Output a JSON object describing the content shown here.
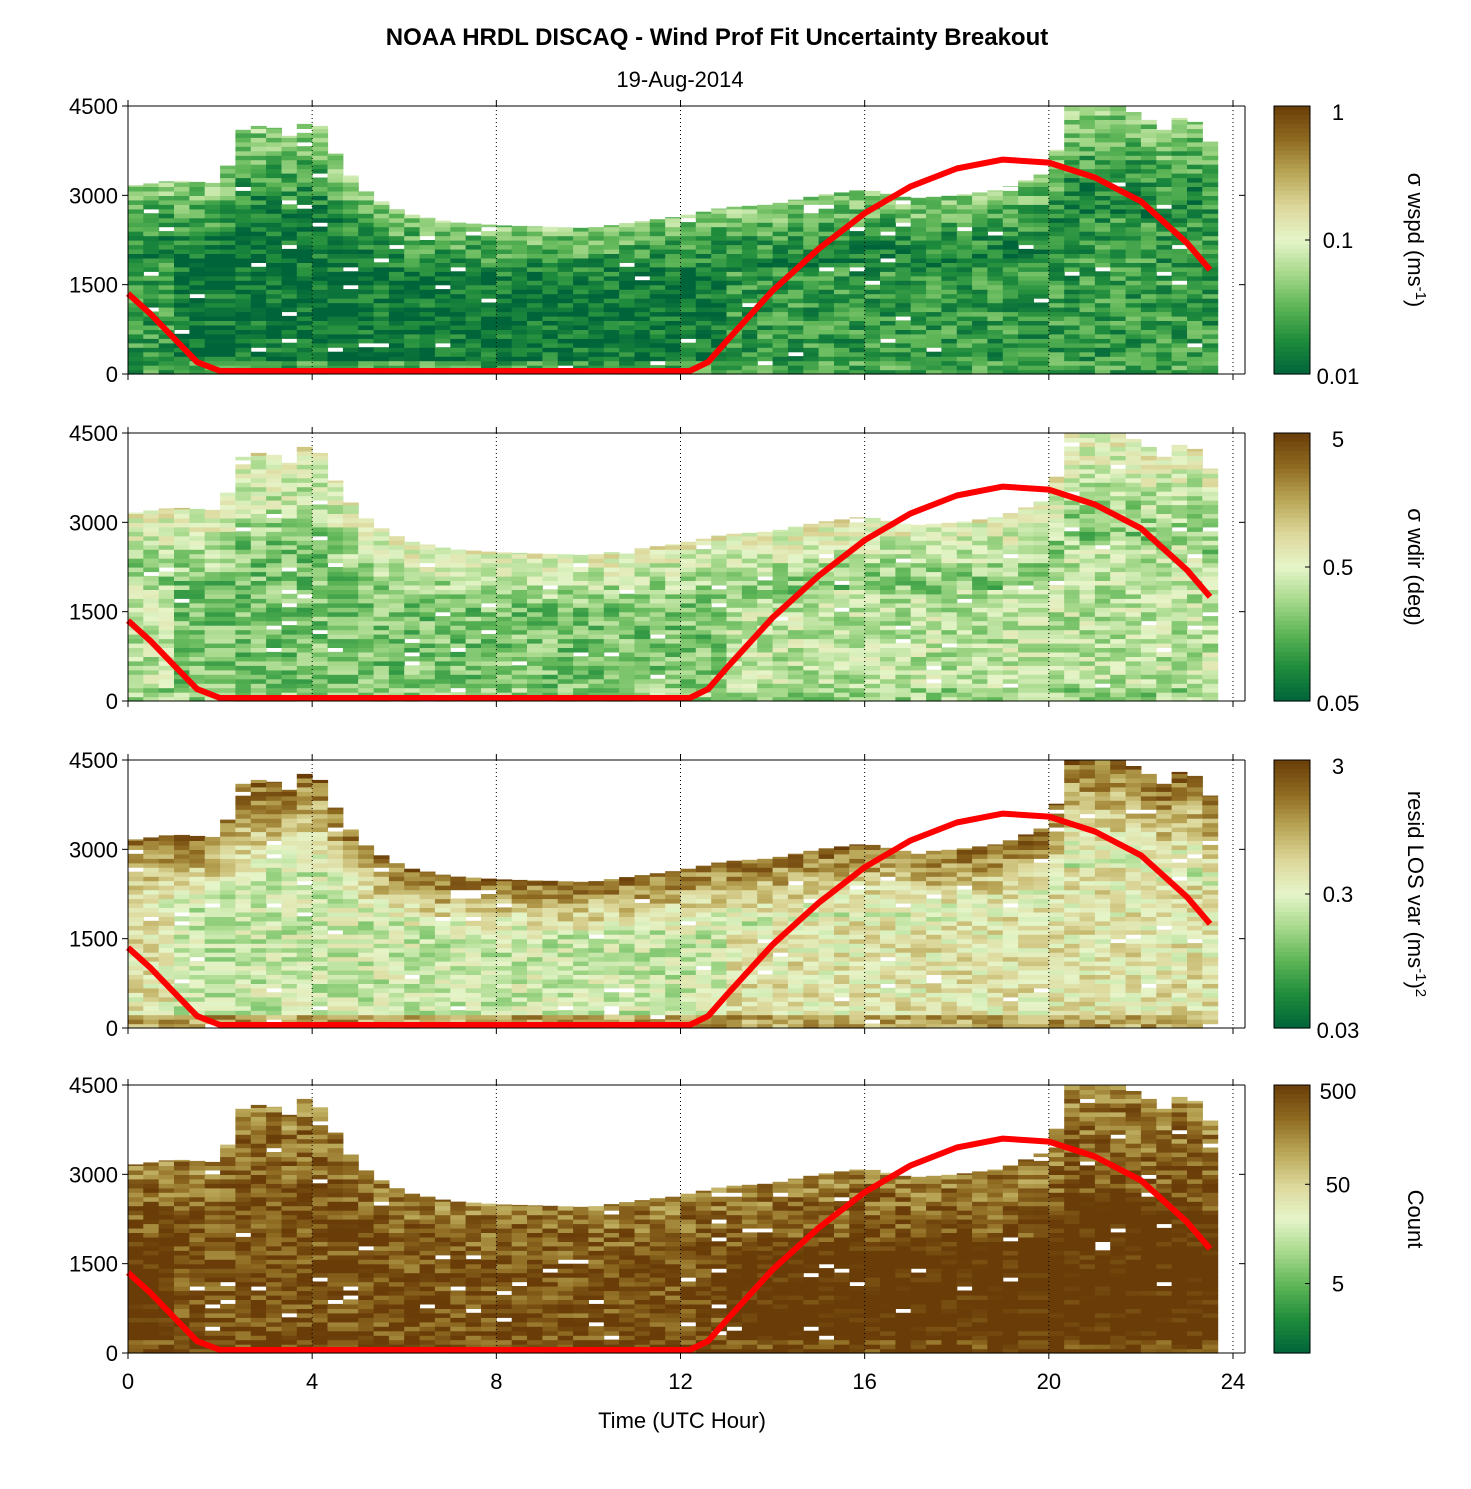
{
  "figure": {
    "title": "NOAA HRDL DISCAQ - Wind Prof Fit Uncertainty Breakout",
    "subtitle": "19-Aug-2014",
    "xlabel": "Time (UTC Hour)"
  },
  "chart_data": [
    {
      "type": "heatmap",
      "name": "sigma-wspd",
      "xlim": [
        0,
        24
      ],
      "ylim": [
        0,
        4500
      ],
      "yticks": [
        "0",
        "1500",
        "3000",
        "4500"
      ],
      "xtick_values": [
        0,
        4,
        8,
        12,
        16,
        20,
        24
      ],
      "colorbar": {
        "label_symbol": "σ",
        "label_text": " wspd (ms",
        "label_sup": "-1",
        "label_end": ")",
        "scale": "log",
        "ticks": [
          "1",
          "0.1",
          "0.01"
        ],
        "tick_values": [
          1,
          0.1,
          0.01
        ],
        "range": [
          0.01,
          1
        ]
      },
      "colormap": "green-to-brown",
      "pattern": {
        "low_level": 0.2,
        "mid_level": 0.05,
        "high_level": 0.35
      }
    },
    {
      "type": "heatmap",
      "name": "sigma-wdir",
      "xlim": [
        0,
        24
      ],
      "ylim": [
        0,
        4500
      ],
      "yticks": [
        "0",
        "1500",
        "3000",
        "4500"
      ],
      "xtick_values": [
        0,
        4,
        8,
        12,
        16,
        20,
        24
      ],
      "colorbar": {
        "label_symbol": "σ",
        "label_text": " wdir (deg)",
        "label_sup": "",
        "label_end": "",
        "scale": "log",
        "ticks": [
          "5",
          "0.5",
          "0.05"
        ],
        "tick_values": [
          5,
          0.5,
          0.05
        ],
        "range": [
          0.05,
          5
        ]
      },
      "colormap": "green-to-brown",
      "pattern": {
        "low_level": 0.35,
        "mid_level": 0.3,
        "high_level": 0.55
      }
    },
    {
      "type": "heatmap",
      "name": "resid-los-var",
      "xlim": [
        0,
        24
      ],
      "ylim": [
        0,
        4500
      ],
      "yticks": [
        "0",
        "1500",
        "3000",
        "4500"
      ],
      "xtick_values": [
        0,
        4,
        8,
        12,
        16,
        20,
        24
      ],
      "colorbar": {
        "label_symbol": "",
        "label_text": "resid LOS var (ms",
        "label_sup": "-1",
        "label_end": ")",
        "label_sup2": "2",
        "scale": "log",
        "ticks": [
          "3",
          "0.3",
          "0.03"
        ],
        "tick_values": [
          3,
          0.3,
          0.03
        ],
        "range": [
          0.03,
          3
        ]
      },
      "colormap": "green-to-brown",
      "pattern": {
        "low_level": 0.75,
        "mid_level": 0.45,
        "high_level": 0.9
      }
    },
    {
      "type": "heatmap",
      "name": "count",
      "xlim": [
        0,
        24
      ],
      "ylim": [
        0,
        4500
      ],
      "yticks": [
        "0",
        "1500",
        "3000",
        "4500"
      ],
      "xtick_labels": [
        "0",
        "4",
        "8",
        "12",
        "16",
        "20",
        "24"
      ],
      "xtick_values": [
        0,
        4,
        8,
        12,
        16,
        20,
        24
      ],
      "colorbar": {
        "label_symbol": "",
        "label_text": "Count",
        "label_sup": "",
        "label_end": "",
        "scale": "log",
        "ticks": [
          "500",
          "50",
          "5"
        ],
        "tick_values": [
          500,
          50,
          5
        ],
        "range": [
          1,
          500
        ]
      },
      "colormap": "green-to-brown",
      "pattern": {
        "low_level": 0.97,
        "mid_level": 0.95,
        "high_level": 0.82
      }
    }
  ],
  "top_profile": [
    {
      "t": 0.0,
      "top": 3150
    },
    {
      "t": 1.0,
      "top": 3250
    },
    {
      "t": 2.0,
      "top": 3200
    },
    {
      "t": 2.5,
      "top": 4100
    },
    {
      "t": 3.0,
      "top": 4200
    },
    {
      "t": 3.5,
      "top": 4000
    },
    {
      "t": 4.0,
      "top": 4400
    },
    {
      "t": 4.5,
      "top": 3700
    },
    {
      "t": 5.0,
      "top": 3150
    },
    {
      "t": 5.5,
      "top": 2900
    },
    {
      "t": 6.0,
      "top": 2700
    },
    {
      "t": 7.0,
      "top": 2550
    },
    {
      "t": 8.0,
      "top": 2500
    },
    {
      "t": 10.0,
      "top": 2450
    },
    {
      "t": 11.0,
      "top": 2550
    },
    {
      "t": 12.0,
      "top": 2650
    },
    {
      "t": 13.0,
      "top": 2800
    },
    {
      "t": 14.0,
      "top": 2850
    },
    {
      "t": 15.0,
      "top": 3000
    },
    {
      "t": 16.0,
      "top": 3100
    },
    {
      "t": 17.0,
      "top": 2950
    },
    {
      "t": 18.0,
      "top": 3000
    },
    {
      "t": 19.0,
      "top": 3100
    },
    {
      "t": 20.0,
      "top": 3400
    },
    {
      "t": 20.5,
      "top": 4500
    },
    {
      "t": 21.5,
      "top": 4500
    },
    {
      "t": 22.0,
      "top": 4350
    },
    {
      "t": 22.5,
      "top": 4100
    },
    {
      "t": 23.0,
      "top": 4400
    },
    {
      "t": 23.5,
      "top": 3900
    }
  ],
  "boundary_layer_height": {
    "color": "#ff0000",
    "points": [
      {
        "t": 0.0,
        "h": 1350
      },
      {
        "t": 0.5,
        "h": 1000
      },
      {
        "t": 1.0,
        "h": 600
      },
      {
        "t": 1.5,
        "h": 200
      },
      {
        "t": 2.0,
        "h": 50
      },
      {
        "t": 12.2,
        "h": 50
      },
      {
        "t": 12.6,
        "h": 200
      },
      {
        "t": 13.0,
        "h": 550
      },
      {
        "t": 14.0,
        "h": 1400
      },
      {
        "t": 15.0,
        "h": 2100
      },
      {
        "t": 16.0,
        "h": 2700
      },
      {
        "t": 17.0,
        "h": 3150
      },
      {
        "t": 18.0,
        "h": 3450
      },
      {
        "t": 19.0,
        "h": 3600
      },
      {
        "t": 20.0,
        "h": 3550
      },
      {
        "t": 21.0,
        "h": 3300
      },
      {
        "t": 22.0,
        "h": 2900
      },
      {
        "t": 23.0,
        "h": 2200
      },
      {
        "t": 23.5,
        "h": 1750
      }
    ]
  },
  "colors": {
    "colormap_stops": [
      "#00643a",
      "#1f8c3c",
      "#5db556",
      "#a7d98c",
      "#e6f5c9",
      "#dcd79a",
      "#b9a656",
      "#8e6a21",
      "#6a3d08"
    ],
    "red_line": "#ff0000"
  }
}
